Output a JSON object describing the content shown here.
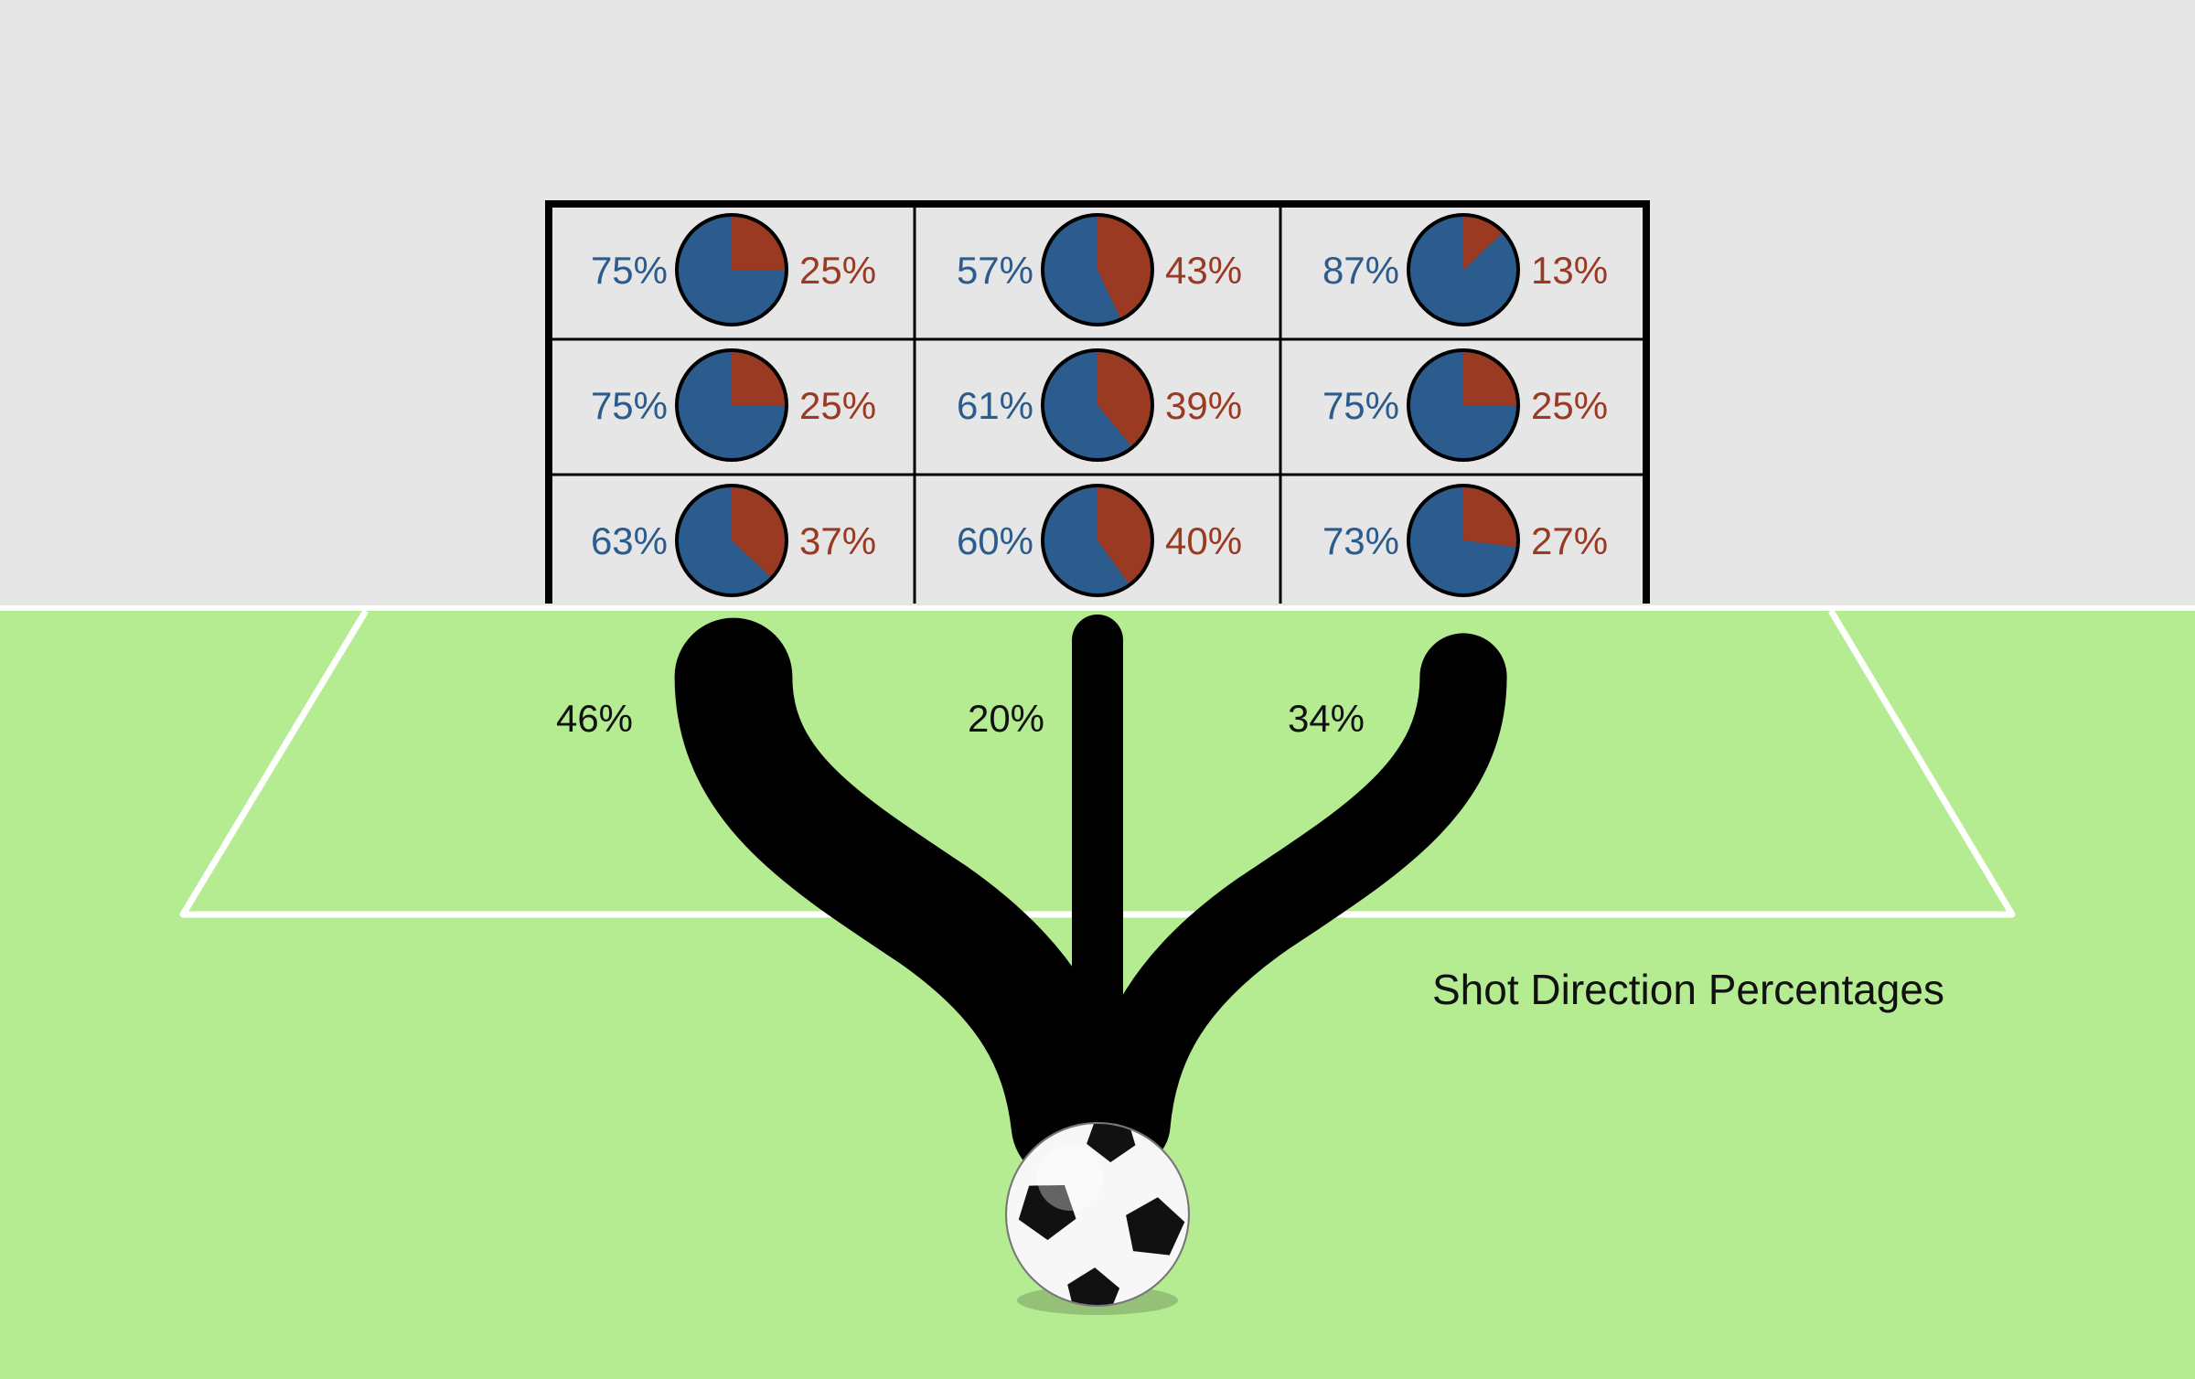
{
  "colors": {
    "wall": "#e6e6e6",
    "grass": "#b5ec92",
    "line": "#ffffff",
    "blue": "#2b5c8d",
    "red": "#9b3a22",
    "stroke": "#000000"
  },
  "caption": "Shot Direction Percentages",
  "chart_data": {
    "type": "pie",
    "description_grid": "3x3 goal zones, each a pie of blue vs red",
    "zones": [
      {
        "row": "top",
        "col": "left",
        "blue": 75,
        "red": 25,
        "blue_label": "75%",
        "red_label": "25%"
      },
      {
        "row": "top",
        "col": "center",
        "blue": 57,
        "red": 43,
        "blue_label": "57%",
        "red_label": "43%"
      },
      {
        "row": "top",
        "col": "right",
        "blue": 87,
        "red": 13,
        "blue_label": "87%",
        "red_label": "13%"
      },
      {
        "row": "middle",
        "col": "left",
        "blue": 75,
        "red": 25,
        "blue_label": "75%",
        "red_label": "25%"
      },
      {
        "row": "middle",
        "col": "center",
        "blue": 61,
        "red": 39,
        "blue_label": "61%",
        "red_label": "39%"
      },
      {
        "row": "middle",
        "col": "right",
        "blue": 75,
        "red": 25,
        "blue_label": "75%",
        "red_label": "25%"
      },
      {
        "row": "bottom",
        "col": "left",
        "blue": 63,
        "red": 37,
        "blue_label": "63%",
        "red_label": "37%"
      },
      {
        "row": "bottom",
        "col": "center",
        "blue": 60,
        "red": 40,
        "blue_label": "60%",
        "red_label": "40%"
      },
      {
        "row": "bottom",
        "col": "right",
        "blue": 73,
        "red": 27,
        "blue_label": "73%",
        "red_label": "27%"
      }
    ],
    "directions": [
      {
        "name": "left",
        "value": 46,
        "label": "46%"
      },
      {
        "name": "center",
        "value": 20,
        "label": "20%"
      },
      {
        "name": "right",
        "value": 34,
        "label": "34%"
      }
    ]
  }
}
